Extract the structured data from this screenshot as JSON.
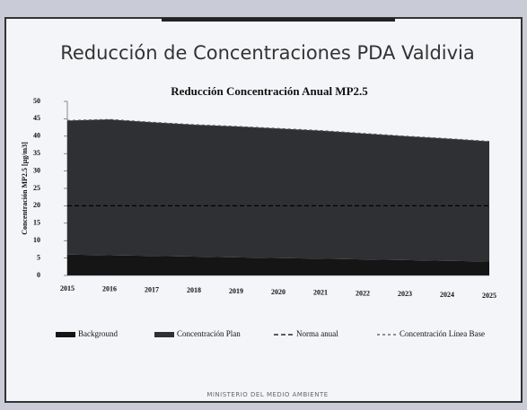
{
  "slide_title": "Reducción de Concentraciones PDA Valdivia",
  "footer": "MINISTERIO DEL MEDIO AMBIENTE",
  "chart_data": {
    "type": "stacked_area",
    "title": "Reducción Concentración Anual MP2.5",
    "y_label": "Concentración MP2.5 [µg/m3]",
    "categories": [
      "2015",
      "2016",
      "2017",
      "2018",
      "2019",
      "2020",
      "2021",
      "2022",
      "2023",
      "2024",
      "2025"
    ],
    "series": [
      {
        "name": "Background",
        "color": "#151515",
        "kind": "area",
        "values": [
          6,
          5.8,
          5.6,
          5.4,
          5.2,
          5,
          4.8,
          4.6,
          4.4,
          4.2,
          4
        ]
      },
      {
        "name": "Concentración Plan",
        "color": "#2e3033",
        "kind": "area",
        "values": [
          38.5,
          39,
          38.4,
          37.9,
          37.6,
          37.2,
          36.8,
          36.2,
          35.6,
          35.1,
          34.5
        ]
      },
      {
        "name": "Norma anual",
        "color": "#000000",
        "kind": "line",
        "dash": "5,3",
        "values": [
          20,
          20,
          20,
          20,
          20,
          20,
          20,
          20,
          20,
          20,
          20
        ]
      },
      {
        "name": "Concentración Línea Base",
        "color": "#555555",
        "kind": "line",
        "dash": "3,3",
        "values": [
          44.5,
          44.8,
          44,
          43.3,
          42.8,
          42.2,
          41.6,
          40.8,
          40,
          39.3,
          38.5
        ]
      }
    ],
    "ylim": [
      0,
      50
    ],
    "yticks": [
      0,
      5,
      10,
      15,
      20,
      25,
      30,
      35,
      40,
      45,
      50
    ]
  }
}
